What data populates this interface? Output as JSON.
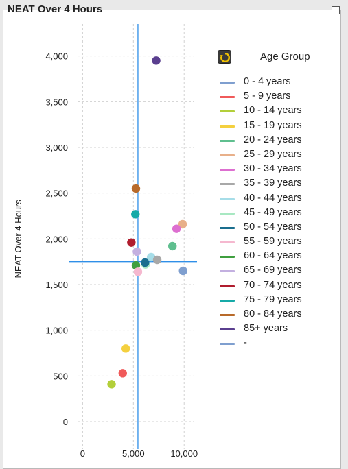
{
  "header": {
    "title": "NEAT Over 4 Hours"
  },
  "legend": {
    "title": "Age Group",
    "items": [
      {
        "label": "0 - 4 years",
        "color": "#7f9fcf"
      },
      {
        "label": "5 - 9 years",
        "color": "#f05a5a"
      },
      {
        "label": "10 - 14 years",
        "color": "#b3cf3a"
      },
      {
        "label": "15 - 19 years",
        "color": "#f4d03f"
      },
      {
        "label": "20 - 24 years",
        "color": "#5fbf8f"
      },
      {
        "label": "25 - 29 years",
        "color": "#e8b08a"
      },
      {
        "label": "30 - 34 years",
        "color": "#dd6fd0"
      },
      {
        "label": "35 - 39 years",
        "color": "#a8a8a8"
      },
      {
        "label": "40 - 44 years",
        "color": "#a6dde8"
      },
      {
        "label": "45 - 49 years",
        "color": "#a8e8c2"
      },
      {
        "label": "50 - 54 years",
        "color": "#1a6e8e"
      },
      {
        "label": "55 - 59 years",
        "color": "#f5b8cf"
      },
      {
        "label": "60 - 64 years",
        "color": "#3f9f3f"
      },
      {
        "label": "65 - 69 years",
        "color": "#c3b0e0"
      },
      {
        "label": "70 - 74 years",
        "color": "#b01c2e"
      },
      {
        "label": "75 - 79 years",
        "color": "#16aaa8"
      },
      {
        "label": "80 - 84 years",
        "color": "#b86a2a"
      },
      {
        "label": "85+ years",
        "color": "#5a3f8f"
      },
      {
        "label": "-",
        "color": "#7f9fcf"
      }
    ]
  },
  "chart_data": {
    "type": "scatter",
    "ylabel": "NEAT Over 4 Hours",
    "xlabel": "",
    "xlim": [
      -500,
      11000
    ],
    "ylim": [
      -300,
      4350
    ],
    "x_ticks": [
      0,
      5000,
      10000
    ],
    "x_tick_labels": [
      "0",
      "5,000",
      "10,000"
    ],
    "y_ticks": [
      0,
      500,
      1000,
      1500,
      2000,
      2500,
      3000,
      3500,
      4000
    ],
    "y_tick_labels": [
      "0",
      "500",
      "1,000",
      "1,500",
      "2,000",
      "2,500",
      "3,000",
      "3,500",
      "4,000"
    ],
    "grid": true,
    "reference_lines": {
      "x": 5450,
      "y": 1750
    },
    "points": [
      {
        "group": "85+ years",
        "x": 7250,
        "y": 3950
      },
      {
        "group": "80 - 84 years",
        "x": 5250,
        "y": 2550
      },
      {
        "group": "75 - 79 years",
        "x": 5200,
        "y": 2270
      },
      {
        "group": "25 - 29 years",
        "x": 9850,
        "y": 2160
      },
      {
        "group": "30 - 34 years",
        "x": 9250,
        "y": 2110
      },
      {
        "group": "70 - 74 years",
        "x": 4800,
        "y": 1960
      },
      {
        "group": "20 - 24 years",
        "x": 8850,
        "y": 1920
      },
      {
        "group": "65 - 69 years",
        "x": 5350,
        "y": 1860
      },
      {
        "group": "40 - 44 years",
        "x": 6750,
        "y": 1800
      },
      {
        "group": "35 - 39 years",
        "x": 7350,
        "y": 1770
      },
      {
        "group": "45 - 49 years",
        "x": 6200,
        "y": 1720
      },
      {
        "group": "50 - 54 years",
        "x": 6150,
        "y": 1740
      },
      {
        "group": "60 - 64 years",
        "x": 5250,
        "y": 1710
      },
      {
        "group": "0 - 4 years",
        "x": 9900,
        "y": 1650
      },
      {
        "group": "55 - 59 years",
        "x": 5450,
        "y": 1640
      },
      {
        "group": "15 - 19 years",
        "x": 4250,
        "y": 800
      },
      {
        "group": "5 - 9 years",
        "x": 3950,
        "y": 530
      },
      {
        "group": "10 - 14 years",
        "x": 2850,
        "y": 410
      }
    ]
  }
}
